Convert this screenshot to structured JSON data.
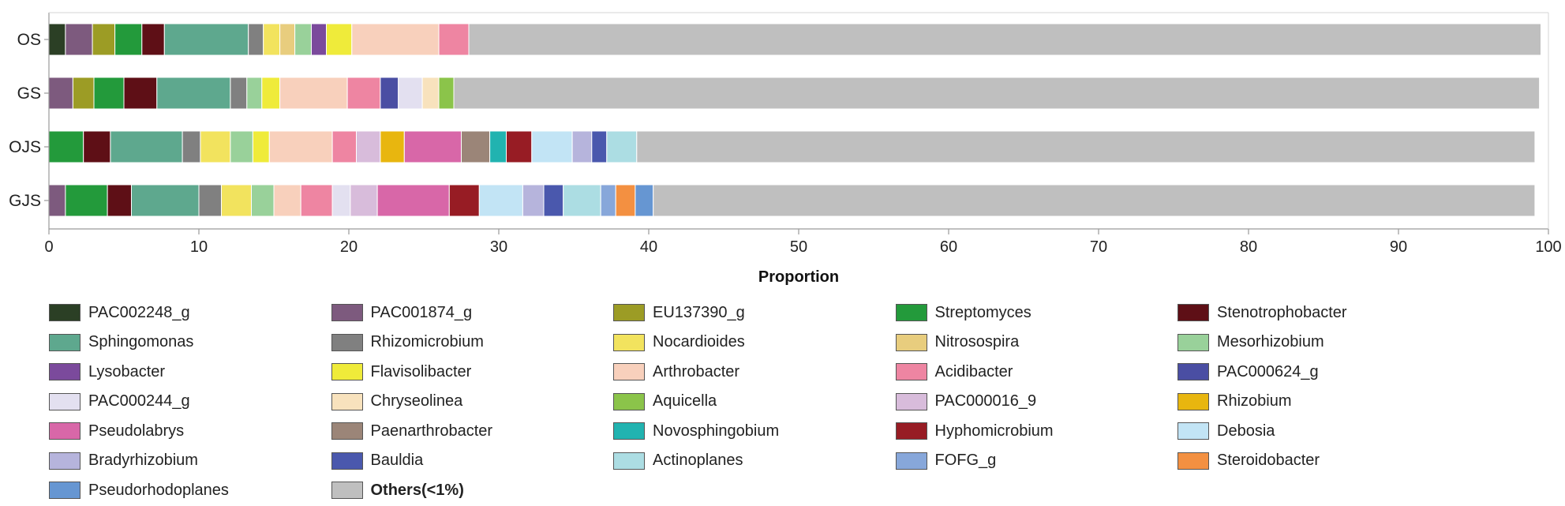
{
  "chart_data": {
    "type": "bar",
    "orientation": "horizontal",
    "stacked": true,
    "title": "",
    "xlabel": "Proportion",
    "ylabel": "",
    "xlim": [
      0,
      100
    ],
    "xticks": [
      0,
      10,
      20,
      30,
      40,
      50,
      60,
      70,
      80,
      90,
      100
    ],
    "grid": false,
    "legend_position": "bottom",
    "categories": [
      "OS",
      "GS",
      "OJS",
      "GJS"
    ],
    "series": [
      {
        "name": "PAC002248_g",
        "color": "#2b3f25",
        "values": [
          1.1,
          0,
          0,
          0
        ]
      },
      {
        "name": "PAC001874_g",
        "color": "#7d5a7e",
        "values": [
          1.8,
          1.6,
          0,
          1.1
        ]
      },
      {
        "name": "EU137390_g",
        "color": "#9c9c25",
        "values": [
          1.5,
          1.4,
          0,
          0
        ]
      },
      {
        "name": "Streptomyces",
        "color": "#239a3b",
        "values": [
          1.8,
          2.0,
          2.3,
          2.8
        ]
      },
      {
        "name": "Stenotrophobacter",
        "color": "#5e0f16",
        "values": [
          1.5,
          2.2,
          1.8,
          1.6
        ]
      },
      {
        "name": "Sphingomonas",
        "color": "#5ea88e",
        "values": [
          5.6,
          4.9,
          4.8,
          4.5
        ]
      },
      {
        "name": "Rhizomicrobium",
        "color": "#808080",
        "values": [
          1.0,
          1.1,
          1.2,
          1.5
        ]
      },
      {
        "name": "Nocardioides",
        "color": "#f2e35e",
        "values": [
          1.1,
          0,
          2.0,
          2.0
        ]
      },
      {
        "name": "Nitrosospira",
        "color": "#e8cd7e",
        "values": [
          1.0,
          0,
          0,
          0
        ]
      },
      {
        "name": "Mesorhizobium",
        "color": "#99d19a",
        "values": [
          1.1,
          1.0,
          1.5,
          1.5
        ]
      },
      {
        "name": "Lysobacter",
        "color": "#7b4a9c",
        "values": [
          1.0,
          0,
          0,
          0
        ]
      },
      {
        "name": "Flavisolibacter",
        "color": "#efeb3a",
        "values": [
          1.7,
          1.2,
          1.1,
          0
        ]
      },
      {
        "name": "Arthrobacter",
        "color": "#f8d0bc",
        "values": [
          5.8,
          4.5,
          4.2,
          1.8
        ]
      },
      {
        "name": "Acidibacter",
        "color": "#ee85a2",
        "values": [
          2.0,
          2.2,
          1.6,
          2.1
        ]
      },
      {
        "name": "PAC000624_g",
        "color": "#4a4ea3",
        "values": [
          0,
          1.2,
          0,
          0
        ]
      },
      {
        "name": "PAC000244_g",
        "color": "#e3e0f0",
        "values": [
          0,
          1.6,
          0,
          1.2
        ]
      },
      {
        "name": "Chryseolinea",
        "color": "#f8e2bd",
        "values": [
          0,
          1.1,
          0,
          0
        ]
      },
      {
        "name": "Aquicella",
        "color": "#8bc44a",
        "values": [
          0,
          1.0,
          0,
          0
        ]
      },
      {
        "name": "PAC000016_9",
        "color": "#d8bcdb",
        "values": [
          0,
          0,
          1.6,
          1.8
        ]
      },
      {
        "name": "Rhizobium",
        "color": "#e8b60f",
        "values": [
          0,
          0,
          1.6,
          0
        ]
      },
      {
        "name": "Pseudolabrys",
        "color": "#d867a8",
        "values": [
          0,
          0,
          3.8,
          4.8
        ]
      },
      {
        "name": "Paenarthrobacter",
        "color": "#9b8578",
        "values": [
          0,
          0,
          1.9,
          0
        ]
      },
      {
        "name": "Novosphingobium",
        "color": "#21b3b0",
        "values": [
          0,
          0,
          1.1,
          0
        ]
      },
      {
        "name": "Hyphomicrobium",
        "color": "#971c24",
        "values": [
          0,
          0,
          1.7,
          2.0
        ]
      },
      {
        "name": "Debosia",
        "color": "#c2e4f5",
        "values": [
          0,
          0,
          2.7,
          2.9
        ]
      },
      {
        "name": "Bradyrhizobium",
        "color": "#b6b4dc",
        "values": [
          0,
          0,
          1.3,
          1.4
        ]
      },
      {
        "name": "Bauldia",
        "color": "#4a58ad",
        "values": [
          0,
          0,
          1.0,
          1.3
        ]
      },
      {
        "name": "Actinoplanes",
        "color": "#acdde3",
        "values": [
          0,
          0,
          2.0,
          2.5
        ]
      },
      {
        "name": "FOFG_g",
        "color": "#87a7da",
        "values": [
          0,
          0,
          0,
          1.0
        ]
      },
      {
        "name": "Steroidobacter",
        "color": "#f39041",
        "values": [
          0,
          0,
          0,
          1.3
        ]
      },
      {
        "name": "Pseudorhodoplanes",
        "color": "#6696d2",
        "values": [
          0,
          0,
          0,
          1.2
        ]
      },
      {
        "name": "Others(<1%)",
        "color": "#bfbfbf",
        "values": [
          71.5,
          72.4,
          59.9,
          58.8
        ]
      }
    ]
  }
}
